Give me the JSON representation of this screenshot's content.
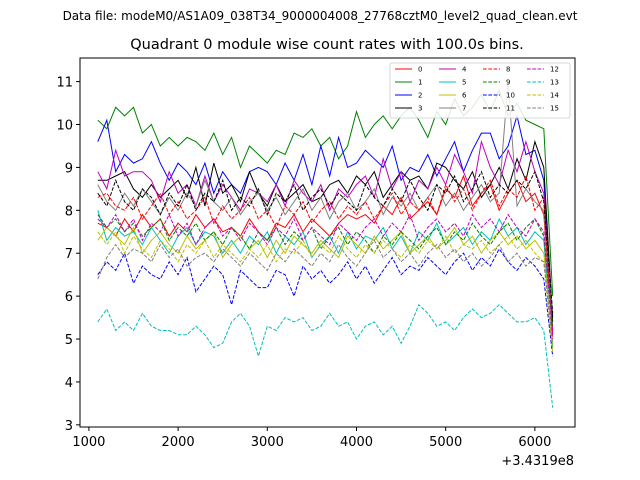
{
  "chart_data": {
    "type": "line",
    "suptitle": "Data file: modeM0/AS1A09_038T34_9000004008_27768cztM0_level2_quad_clean.evt",
    "title": "Quadrant 0 module wise count rates with 100.0s bins.",
    "x_offset_label": "+3.4319e8",
    "xlim": [
      900,
      6450
    ],
    "ylim": [
      2.95,
      11.55
    ],
    "xticks": [
      1000,
      2000,
      3000,
      4000,
      5000,
      6000
    ],
    "xtick_labels": [
      "1000",
      "2000",
      "3000",
      "4000",
      "5000",
      "6000"
    ],
    "yticks": [
      3,
      4,
      5,
      6,
      7,
      8,
      9,
      10,
      11
    ],
    "ytick_labels": [
      "3",
      "4",
      "5",
      "6",
      "7",
      "8",
      "9",
      "10",
      "11"
    ],
    "x": [
      1100,
      1200,
      1300,
      1400,
      1500,
      1600,
      1700,
      1800,
      1900,
      2000,
      2100,
      2200,
      2300,
      2400,
      2500,
      2600,
      2700,
      2800,
      2900,
      3000,
      3100,
      3200,
      3300,
      3400,
      3500,
      3600,
      3700,
      3800,
      3900,
      4000,
      4100,
      4200,
      4300,
      4400,
      4500,
      4600,
      4700,
      4800,
      4900,
      5000,
      5100,
      5200,
      5300,
      5400,
      5500,
      5600,
      5700,
      5800,
      5900,
      6000,
      6100,
      6200
    ],
    "series": [
      {
        "name": "0",
        "color": "#ff0000",
        "dash": "solid",
        "values": [
          7.7,
          7.6,
          7.4,
          7.8,
          7.5,
          7.9,
          7.6,
          7.8,
          7.4,
          7.7,
          7.5,
          7.9,
          7.6,
          7.8,
          7.5,
          7.6,
          7.4,
          7.8,
          7.5,
          7.3,
          7.7,
          7.6,
          7.9,
          7.5,
          7.8,
          7.6,
          7.4,
          7.7,
          7.9,
          7.8,
          7.9,
          7.7,
          8.1,
          7.9,
          8.3,
          7.8,
          8.0,
          8.2,
          7.9,
          8.5,
          8.3,
          8.8,
          8.1,
          8.4,
          8.6,
          8.0,
          8.4,
          8.7,
          8.2,
          8.4,
          7.9,
          5.2
        ]
      },
      {
        "name": "1",
        "color": "#008000",
        "dash": "solid",
        "values": [
          10.1,
          9.9,
          10.4,
          10.2,
          10.4,
          9.8,
          10.0,
          9.5,
          9.7,
          9.5,
          9.7,
          9.6,
          9.4,
          9.8,
          9.3,
          9.7,
          9.0,
          9.5,
          9.3,
          9.1,
          9.4,
          9.3,
          9.8,
          9.7,
          9.9,
          9.5,
          9.7,
          9.2,
          9.5,
          10.3,
          9.7,
          10.0,
          10.2,
          9.9,
          10.2,
          10.4,
          10.1,
          9.7,
          10.3,
          10.0,
          10.6,
          10.2,
          10.4,
          10.7,
          10.3,
          10.8,
          10.2,
          10.5,
          10.1,
          10.0,
          9.9,
          6.0
        ]
      },
      {
        "name": "2",
        "color": "#0000ff",
        "dash": "solid",
        "values": [
          9.6,
          10.1,
          8.9,
          9.3,
          9.1,
          9.2,
          9.6,
          9.1,
          8.7,
          9.1,
          8.9,
          8.6,
          9.1,
          8.4,
          8.9,
          8.6,
          8.4,
          8.9,
          9.0,
          8.9,
          8.6,
          9.1,
          8.7,
          9.3,
          8.6,
          9.5,
          8.8,
          9.7,
          9.0,
          9.1,
          9.4,
          9.2,
          9.0,
          9.5,
          8.7,
          9.0,
          8.9,
          9.3,
          8.8,
          9.2,
          9.6,
          8.9,
          9.4,
          9.8,
          9.8,
          9.2,
          9.5,
          10.2,
          9.3,
          9.4,
          8.7,
          5.5
        ]
      },
      {
        "name": "3",
        "color": "#000000",
        "dash": "solid",
        "values": [
          8.7,
          8.7,
          8.8,
          8.9,
          8.5,
          8.3,
          8.6,
          8.3,
          8.5,
          8.7,
          8.3,
          9.0,
          8.1,
          9.1,
          8.4,
          8.6,
          8.2,
          8.9,
          8.4,
          8.1,
          8.6,
          8.2,
          8.4,
          8.6,
          8.2,
          8.3,
          8.6,
          8.7,
          8.4,
          8.8,
          8.6,
          8.9,
          8.3,
          8.6,
          8.9,
          8.7,
          8.8,
          8.5,
          9.1,
          9.0,
          8.7,
          8.5,
          8.9,
          8.3,
          8.6,
          9.0,
          8.5,
          9.2,
          8.7,
          9.6,
          9.0,
          5.4
        ]
      },
      {
        "name": "4",
        "color": "#bf00bf",
        "dash": "solid",
        "values": [
          8.9,
          8.5,
          9.4,
          8.8,
          8.9,
          8.9,
          8.7,
          8.2,
          8.9,
          8.4,
          8.6,
          8.1,
          8.8,
          8.2,
          8.6,
          8.3,
          8.0,
          8.5,
          8.4,
          8.2,
          8.6,
          8.1,
          8.7,
          8.4,
          8.2,
          8.6,
          8.0,
          8.5,
          8.3,
          8.6,
          8.8,
          8.3,
          9.2,
          8.5,
          8.9,
          8.2,
          8.7,
          8.5,
          9.0,
          8.6,
          9.3,
          8.9,
          8.4,
          9.6,
          9.0,
          8.6,
          9.4,
          8.9,
          9.6,
          8.9,
          8.4,
          5.1
        ]
      },
      {
        "name": "5",
        "color": "#00bfbf",
        "dash": "solid",
        "values": [
          8.0,
          7.3,
          7.6,
          7.4,
          7.5,
          7.2,
          7.6,
          7.3,
          7.0,
          7.4,
          7.6,
          7.2,
          7.5,
          7.4,
          7.0,
          7.3,
          7.0,
          7.4,
          7.2,
          7.5,
          7.0,
          7.4,
          7.2,
          7.5,
          6.9,
          7.2,
          7.4,
          7.0,
          7.5,
          7.1,
          7.4,
          7.3,
          7.6,
          7.1,
          7.4,
          7.0,
          7.5,
          7.3,
          7.7,
          7.2,
          7.4,
          7.6,
          7.2,
          7.5,
          7.3,
          7.8,
          7.4,
          7.6,
          7.2,
          7.5,
          7.3,
          4.8
        ]
      },
      {
        "name": "6",
        "color": "#bfbf00",
        "dash": "solid",
        "values": [
          7.3,
          7.6,
          7.4,
          7.2,
          7.6,
          7.0,
          7.3,
          7.5,
          7.2,
          7.0,
          7.4,
          7.1,
          7.3,
          7.5,
          6.9,
          7.2,
          7.4,
          7.1,
          7.3,
          6.9,
          7.3,
          7.0,
          7.4,
          7.2,
          7.0,
          7.3,
          7.1,
          6.9,
          7.4,
          7.2,
          7.0,
          7.4,
          7.1,
          7.3,
          7.5,
          7.0,
          7.2,
          7.4,
          7.1,
          7.3,
          7.6,
          7.2,
          7.4,
          7.0,
          7.3,
          7.5,
          7.2,
          7.4,
          7.1,
          7.3,
          7.0,
          4.9
        ]
      },
      {
        "name": "7",
        "color": "#808080",
        "dash": "solid",
        "values": [
          8.6,
          8.2,
          8.0,
          8.4,
          8.1,
          8.5,
          8.2,
          7.9,
          8.3,
          8.0,
          8.4,
          8.1,
          8.7,
          8.2,
          8.0,
          8.3,
          7.9,
          8.2,
          8.4,
          8.0,
          8.3,
          7.9,
          8.2,
          8.5,
          8.0,
          8.3,
          7.8,
          8.2,
          8.4,
          8.0,
          8.2,
          8.5,
          7.9,
          8.3,
          8.1,
          8.4,
          8.0,
          8.3,
          8.6,
          8.1,
          8.4,
          8.0,
          8.3,
          8.6,
          8.2,
          8.4,
          11.0,
          8.1,
          8.5,
          8.2,
          8.0,
          5.6
        ]
      },
      {
        "name": "8",
        "color": "#ff0000",
        "dash": "dashed",
        "values": [
          8.3,
          8.4,
          8.1,
          8.0,
          8.3,
          7.8,
          8.1,
          8.4,
          7.9,
          8.2,
          7.8,
          8.0,
          8.3,
          7.7,
          8.1,
          7.8,
          8.0,
          8.3,
          7.8,
          8.0,
          7.6,
          8.1,
          7.9,
          8.2,
          7.7,
          8.0,
          8.2,
          7.8,
          8.1,
          7.9,
          8.2,
          7.8,
          8.1,
          8.4,
          7.9,
          8.2,
          8.0,
          8.3,
          7.9,
          8.6,
          8.2,
          8.5,
          8.0,
          8.4,
          8.7,
          8.1,
          8.5,
          8.3,
          8.8,
          8.0,
          8.3,
          5.0
        ]
      },
      {
        "name": "9",
        "color": "#008000",
        "dash": "dashed",
        "values": [
          7.9,
          7.6,
          7.8,
          7.5,
          7.7,
          7.4,
          7.6,
          7.8,
          7.3,
          7.6,
          7.4,
          7.7,
          7.3,
          7.5,
          7.2,
          7.6,
          7.4,
          7.1,
          7.5,
          7.3,
          7.6,
          7.2,
          7.5,
          7.3,
          7.6,
          7.1,
          7.4,
          7.6,
          7.2,
          7.5,
          7.3,
          7.0,
          7.4,
          7.2,
          7.5,
          7.3,
          7.1,
          7.4,
          7.6,
          7.2,
          7.5,
          7.3,
          7.7,
          7.4,
          7.2,
          7.5,
          7.7,
          7.3,
          7.6,
          7.8,
          7.4,
          5.3
        ]
      },
      {
        "name": "10",
        "color": "#0000ff",
        "dash": "dashed",
        "values": [
          6.5,
          6.8,
          6.6,
          7.0,
          6.3,
          6.7,
          6.5,
          6.4,
          6.8,
          6.5,
          6.9,
          6.1,
          6.4,
          6.7,
          6.5,
          5.8,
          6.6,
          6.4,
          6.2,
          6.2,
          6.6,
          6.5,
          6.0,
          6.7,
          6.4,
          6.6,
          6.3,
          6.5,
          6.8,
          6.4,
          6.7,
          6.3,
          6.6,
          6.9,
          6.5,
          6.7,
          6.6,
          6.9,
          6.7,
          6.5,
          6.8,
          7.0,
          6.6,
          6.9,
          6.7,
          7.1,
          6.8,
          6.6,
          6.9,
          6.7,
          6.4,
          4.6
        ]
      },
      {
        "name": "11",
        "color": "#000000",
        "dash": "dashed",
        "values": [
          8.4,
          8.1,
          8.7,
          8.2,
          8.0,
          8.5,
          8.3,
          7.9,
          8.4,
          8.1,
          8.6,
          8.0,
          8.4,
          8.2,
          8.7,
          8.0,
          8.3,
          8.1,
          8.5,
          7.9,
          8.4,
          8.2,
          8.6,
          8.0,
          8.3,
          8.5,
          8.1,
          8.4,
          8.2,
          8.0,
          8.6,
          8.3,
          8.1,
          8.5,
          8.2,
          8.7,
          8.3,
          8.0,
          8.6,
          8.4,
          8.8,
          8.2,
          8.5,
          8.9,
          8.3,
          8.6,
          8.4,
          8.7,
          8.5,
          8.9,
          8.2,
          5.6
        ]
      },
      {
        "name": "12",
        "color": "#bf00bf",
        "dash": "dashed",
        "values": [
          7.8,
          7.6,
          7.9,
          7.5,
          7.8,
          7.3,
          7.7,
          7.5,
          7.9,
          7.4,
          7.7,
          7.2,
          7.6,
          7.8,
          7.4,
          7.6,
          7.3,
          7.7,
          7.5,
          7.2,
          7.6,
          7.4,
          7.8,
          7.3,
          7.6,
          7.4,
          7.2,
          7.7,
          7.5,
          7.3,
          7.6,
          7.8,
          7.4,
          7.7,
          7.5,
          7.9,
          7.3,
          7.6,
          7.8,
          7.5,
          7.7,
          7.4,
          7.9,
          7.6,
          7.8,
          7.5,
          7.9,
          7.6,
          7.4,
          7.8,
          7.5,
          5.1
        ]
      },
      {
        "name": "13",
        "color": "#00bfbf",
        "dash": "dashed",
        "values": [
          5.4,
          5.7,
          5.2,
          5.4,
          5.2,
          5.6,
          5.3,
          5.2,
          5.2,
          5.1,
          5.1,
          5.3,
          5.1,
          4.8,
          4.9,
          5.4,
          5.6,
          5.3,
          4.6,
          5.3,
          5.2,
          5.5,
          5.4,
          5.5,
          5.2,
          5.3,
          5.6,
          5.3,
          5.4,
          5.0,
          5.3,
          5.4,
          5.1,
          5.3,
          4.9,
          5.3,
          5.8,
          5.6,
          5.3,
          5.4,
          5.2,
          5.5,
          5.7,
          5.5,
          5.6,
          5.8,
          5.6,
          5.4,
          5.4,
          5.5,
          5.2,
          3.4
        ]
      },
      {
        "name": "14",
        "color": "#bfbf00",
        "dash": "dashed",
        "values": [
          7.5,
          7.2,
          7.5,
          7.0,
          7.4,
          7.1,
          6.9,
          7.3,
          7.1,
          6.8,
          7.2,
          7.0,
          7.3,
          6.9,
          7.2,
          7.0,
          6.8,
          7.1,
          6.9,
          7.2,
          6.8,
          7.1,
          7.0,
          7.3,
          6.9,
          7.2,
          7.0,
          7.4,
          7.1,
          6.9,
          7.2,
          7.0,
          7.3,
          7.1,
          6.9,
          7.2,
          7.0,
          7.3,
          7.1,
          7.4,
          7.0,
          7.2,
          7.1,
          7.3,
          7.0,
          7.2,
          7.4,
          7.1,
          7.3,
          7.0,
          6.8,
          4.7
        ]
      },
      {
        "name": "15",
        "color": "#808080",
        "dash": "dashed",
        "values": [
          6.4,
          6.9,
          7.2,
          6.9,
          7.1,
          7.0,
          6.8,
          7.2,
          6.9,
          7.1,
          6.7,
          6.9,
          7.0,
          6.8,
          7.1,
          6.9,
          6.7,
          7.0,
          6.8,
          6.6,
          7.0,
          6.8,
          7.1,
          6.9,
          6.7,
          7.0,
          6.8,
          7.2,
          6.9,
          6.7,
          7.0,
          7.3,
          6.9,
          7.1,
          6.8,
          7.0,
          6.7,
          7.0,
          7.2,
          6.9,
          7.1,
          6.8,
          7.0,
          6.7,
          6.9,
          7.2,
          6.8,
          7.0,
          6.7,
          6.9,
          6.8,
          4.9
        ]
      }
    ]
  }
}
